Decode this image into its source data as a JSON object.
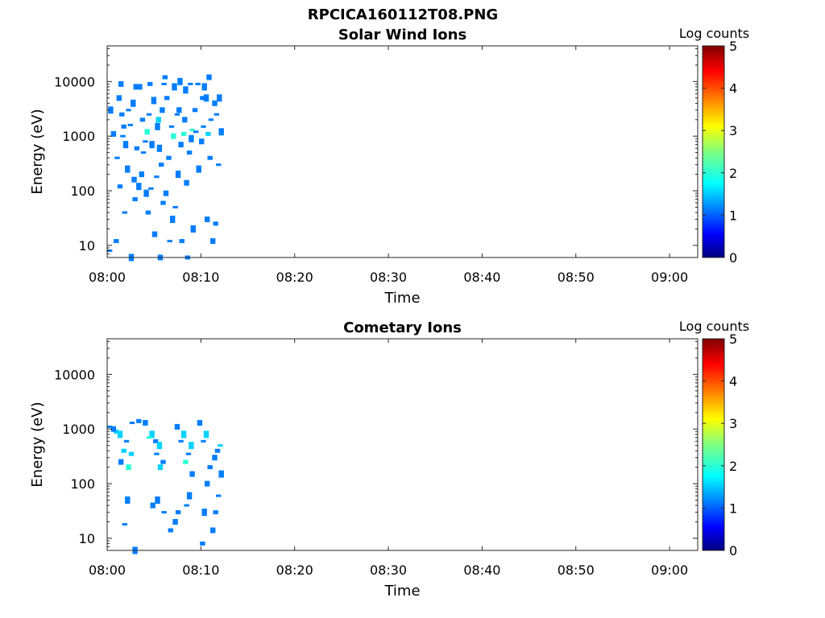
{
  "figure": {
    "title": "RPCICA160112T08.PNG"
  },
  "chart_data": [
    {
      "type": "heatmap",
      "title": "Solar Wind Ions",
      "xlabel": "Time",
      "ylabel": "Energy (eV)",
      "x_ticks": [
        "08:00",
        "08:10",
        "08:20",
        "08:30",
        "08:40",
        "08:50",
        "09:00"
      ],
      "xlim": [
        "08:00",
        "09:03"
      ],
      "y_scale": "log",
      "y_ticks": [
        10,
        100,
        1000,
        10000
      ],
      "y_tick_labels": [
        "10",
        "100",
        "1000",
        "10000"
      ],
      "ylim": [
        6,
        45000
      ],
      "colorbar": {
        "label": "Log counts",
        "range": [
          0,
          5
        ],
        "ticks": [
          "0",
          "1",
          "2",
          "3",
          "4",
          "5"
        ],
        "colormap": "jet"
      },
      "grid": false,
      "cells": [
        [
          "08:00",
          8,
          1
        ],
        [
          "08:00",
          12,
          1
        ],
        [
          "08:00",
          1100,
          1
        ],
        [
          "08:00",
          3000,
          1
        ],
        [
          "08:00",
          400,
          1
        ],
        [
          "08:01",
          1500,
          1
        ],
        [
          "08:01",
          9000,
          1
        ],
        [
          "08:01",
          250,
          1
        ],
        [
          "08:01",
          40,
          1
        ],
        [
          "08:01",
          2500,
          1
        ],
        [
          "08:01",
          5000,
          1
        ],
        [
          "08:01",
          700,
          1
        ],
        [
          "08:01",
          1000,
          1
        ],
        [
          "08:01",
          120,
          1
        ],
        [
          "08:02",
          8000,
          1
        ],
        [
          "08:02",
          4000,
          1
        ],
        [
          "08:02",
          1600,
          1
        ],
        [
          "08:02",
          600,
          1
        ],
        [
          "08:02",
          160,
          1
        ],
        [
          "08:02",
          6,
          1
        ],
        [
          "08:02",
          3000,
          1
        ],
        [
          "08:02",
          70,
          1
        ],
        [
          "08:03",
          200,
          1
        ],
        [
          "08:03",
          120,
          1
        ],
        [
          "08:03",
          800,
          1
        ],
        [
          "08:03",
          2000,
          1
        ],
        [
          "08:03",
          8000,
          1
        ],
        [
          "08:03",
          90,
          1
        ],
        [
          "08:03",
          500,
          1
        ],
        [
          "08:04",
          9000,
          1
        ],
        [
          "08:04",
          1200,
          2
        ],
        [
          "08:04",
          4500,
          1
        ],
        [
          "08:04",
          110,
          1
        ],
        [
          "08:04",
          40,
          1
        ],
        [
          "08:04",
          16,
          1
        ],
        [
          "08:04",
          700,
          1
        ],
        [
          "08:04",
          2500,
          1
        ],
        [
          "08:05",
          12000,
          1
        ],
        [
          "08:05",
          3000,
          1
        ],
        [
          "08:05",
          600,
          1
        ],
        [
          "08:05",
          180,
          1
        ],
        [
          "08:05",
          60,
          1
        ],
        [
          "08:05",
          6,
          1
        ],
        [
          "08:05",
          1500,
          1
        ],
        [
          "08:05",
          9000,
          1
        ],
        [
          "08:05",
          300,
          1
        ],
        [
          "08:05",
          2000,
          1.5
        ],
        [
          "08:06",
          8000,
          1
        ],
        [
          "08:06",
          1500,
          1
        ],
        [
          "08:06",
          400,
          1
        ],
        [
          "08:06",
          90,
          1
        ],
        [
          "08:06",
          30,
          1
        ],
        [
          "08:06",
          12,
          1
        ],
        [
          "08:06",
          5000,
          1
        ],
        [
          "08:06",
          1000,
          2
        ],
        [
          "08:07",
          10000,
          1
        ],
        [
          "08:07",
          2500,
          1
        ],
        [
          "08:07",
          1100,
          2
        ],
        [
          "08:07",
          700,
          1
        ],
        [
          "08:07",
          200,
          1
        ],
        [
          "08:07",
          50,
          1
        ],
        [
          "08:07",
          12,
          1
        ],
        [
          "08:07",
          3000,
          1
        ],
        [
          "08:08",
          7000,
          1
        ],
        [
          "08:08",
          1300,
          2
        ],
        [
          "08:08",
          500,
          1
        ],
        [
          "08:08",
          140,
          1
        ],
        [
          "08:08",
          20,
          1
        ],
        [
          "08:08",
          9000,
          1
        ],
        [
          "08:08",
          6,
          1
        ],
        [
          "08:08",
          2000,
          1
        ],
        [
          "08:08",
          900,
          1
        ],
        [
          "08:09",
          9000,
          1
        ],
        [
          "08:09",
          3000,
          1
        ],
        [
          "08:09",
          800,
          1
        ],
        [
          "08:09",
          250,
          1
        ],
        [
          "08:09",
          1200,
          1
        ],
        [
          "08:09",
          5000,
          1
        ],
        [
          "08:10",
          12000,
          1
        ],
        [
          "08:10",
          5000,
          1
        ],
        [
          "08:10",
          1500,
          1
        ],
        [
          "08:10",
          400,
          1
        ],
        [
          "08:10",
          30,
          1
        ],
        [
          "08:10",
          8000,
          1
        ],
        [
          "08:10",
          2000,
          1
        ],
        [
          "08:10",
          1100,
          1.5
        ],
        [
          "08:11",
          4000,
          1
        ],
        [
          "08:11",
          1200,
          1
        ],
        [
          "08:11",
          300,
          1
        ],
        [
          "08:11",
          25,
          1
        ],
        [
          "08:11",
          12,
          1
        ],
        [
          "08:11",
          5000,
          1
        ],
        [
          "08:11",
          2500,
          1
        ]
      ]
    },
    {
      "type": "heatmap",
      "title": "Cometary Ions",
      "xlabel": "Time",
      "ylabel": "Energy (eV)",
      "x_ticks": [
        "08:00",
        "08:10",
        "08:20",
        "08:30",
        "08:40",
        "08:50",
        "09:00"
      ],
      "xlim": [
        "08:00",
        "09:03"
      ],
      "y_scale": "log",
      "y_ticks": [
        10,
        100,
        1000,
        10000
      ],
      "y_tick_labels": [
        "10",
        "100",
        "1000",
        "10000"
      ],
      "ylim": [
        6,
        45000
      ],
      "colorbar": {
        "label": "Log counts",
        "range": [
          0,
          5
        ],
        "ticks": [
          "0",
          "1",
          "2",
          "3",
          "4",
          "5"
        ],
        "colormap": "jet"
      },
      "grid": false,
      "cells": [
        [
          "08:00",
          1100,
          1
        ],
        [
          "08:00",
          900,
          1.5
        ],
        [
          "08:00",
          1000,
          1
        ],
        [
          "08:01",
          800,
          1.5
        ],
        [
          "08:01",
          600,
          1
        ],
        [
          "08:01",
          400,
          1.5
        ],
        [
          "08:01",
          250,
          1
        ],
        [
          "08:01",
          50,
          1
        ],
        [
          "08:01",
          18,
          1
        ],
        [
          "08:02",
          350,
          1.5
        ],
        [
          "08:02",
          200,
          2
        ],
        [
          "08:02",
          6,
          1
        ],
        [
          "08:02",
          1300,
          1
        ],
        [
          "08:03",
          1400,
          1
        ],
        [
          "08:03",
          1300,
          1
        ],
        [
          "08:04",
          800,
          1.5
        ],
        [
          "08:04",
          700,
          2
        ],
        [
          "08:04",
          600,
          1
        ],
        [
          "08:04",
          40,
          1
        ],
        [
          "08:05",
          500,
          1.5
        ],
        [
          "08:05",
          350,
          1
        ],
        [
          "08:05",
          250,
          1
        ],
        [
          "08:05",
          200,
          1.5
        ],
        [
          "08:05",
          50,
          1
        ],
        [
          "08:05",
          30,
          1
        ],
        [
          "08:06",
          14,
          1
        ],
        [
          "08:07",
          1100,
          1
        ],
        [
          "08:07",
          800,
          1.5
        ],
        [
          "08:07",
          600,
          1
        ],
        [
          "08:07",
          30,
          1
        ],
        [
          "08:07",
          20,
          1
        ],
        [
          "08:08",
          500,
          1.5
        ],
        [
          "08:08",
          350,
          1
        ],
        [
          "08:08",
          250,
          2
        ],
        [
          "08:08",
          150,
          1
        ],
        [
          "08:08",
          60,
          1
        ],
        [
          "08:08",
          40,
          1
        ],
        [
          "08:09",
          8,
          1
        ],
        [
          "08:09",
          1300,
          1
        ],
        [
          "08:10",
          800,
          1.5
        ],
        [
          "08:10",
          600,
          1
        ],
        [
          "08:10",
          200,
          1
        ],
        [
          "08:10",
          100,
          1
        ],
        [
          "08:10",
          30,
          1
        ],
        [
          "08:11",
          500,
          1.5
        ],
        [
          "08:11",
          400,
          1
        ],
        [
          "08:11",
          300,
          1
        ],
        [
          "08:11",
          150,
          1
        ],
        [
          "08:11",
          60,
          1
        ],
        [
          "08:11",
          30,
          1
        ],
        [
          "08:11",
          14,
          1
        ]
      ]
    }
  ]
}
